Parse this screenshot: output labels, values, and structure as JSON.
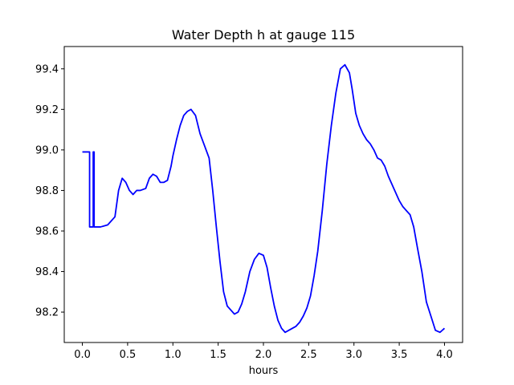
{
  "chart_data": {
    "type": "line",
    "title": "Water Depth h at gauge 115",
    "xlabel": "hours",
    "ylabel": "",
    "xlim": [
      -0.2,
      4.2
    ],
    "ylim": [
      98.05,
      99.51
    ],
    "grid": false,
    "x_ticks": [
      0.0,
      0.5,
      1.0,
      1.5,
      2.0,
      2.5,
      3.0,
      3.5,
      4.0
    ],
    "x_tick_labels": [
      "0.0",
      "0.5",
      "1.0",
      "1.5",
      "2.0",
      "2.5",
      "3.0",
      "3.5",
      "4.0"
    ],
    "y_ticks": [
      98.2,
      98.4,
      98.6,
      98.8,
      99.0,
      99.2,
      99.4
    ],
    "y_tick_labels": [
      "98.2",
      "98.4",
      "98.6",
      "98.8",
      "99.0",
      "99.2",
      "99.4"
    ],
    "series": [
      {
        "color": "#0000ff",
        "x": [
          0,
          0.08,
          0.08,
          0.12,
          0.12,
          0.13,
          0.13,
          0.2,
          0.28,
          0.36,
          0.4,
          0.44,
          0.48,
          0.52,
          0.56,
          0.6,
          0.64,
          0.7,
          0.74,
          0.78,
          0.82,
          0.86,
          0.9,
          0.94,
          0.98,
          1.0,
          1.04,
          1.08,
          1.12,
          1.16,
          1.2,
          1.25,
          1.3,
          1.35,
          1.4,
          1.44,
          1.48,
          1.52,
          1.56,
          1.6,
          1.64,
          1.68,
          1.72,
          1.76,
          1.8,
          1.85,
          1.9,
          1.95,
          2.0,
          2.04,
          2.08,
          2.12,
          2.16,
          2.2,
          2.24,
          2.28,
          2.32,
          2.36,
          2.4,
          2.44,
          2.48,
          2.52,
          2.56,
          2.6,
          2.65,
          2.7,
          2.75,
          2.8,
          2.85,
          2.9,
          2.95,
          2.98,
          3.02,
          3.06,
          3.1,
          3.14,
          3.18,
          3.22,
          3.26,
          3.3,
          3.34,
          3.38,
          3.42,
          3.46,
          3.5,
          3.54,
          3.58,
          3.62,
          3.66,
          3.7,
          3.75,
          3.8,
          3.85,
          3.9,
          3.95,
          4.0
        ],
        "y": [
          98.99,
          98.99,
          98.62,
          98.62,
          98.99,
          98.99,
          98.62,
          98.62,
          98.63,
          98.67,
          98.8,
          98.86,
          98.84,
          98.8,
          98.78,
          98.8,
          98.8,
          98.81,
          98.86,
          98.88,
          98.87,
          98.84,
          98.84,
          98.85,
          98.92,
          98.97,
          99.05,
          99.12,
          99.17,
          99.19,
          99.2,
          99.17,
          99.08,
          99.02,
          98.96,
          98.8,
          98.62,
          98.45,
          98.3,
          98.23,
          98.21,
          98.19,
          98.2,
          98.24,
          98.3,
          98.4,
          98.46,
          98.49,
          98.48,
          98.42,
          98.32,
          98.23,
          98.16,
          98.12,
          98.1,
          98.11,
          98.12,
          98.13,
          98.15,
          98.18,
          98.22,
          98.28,
          98.38,
          98.5,
          98.7,
          98.93,
          99.12,
          99.28,
          99.4,
          99.42,
          99.38,
          99.3,
          99.18,
          99.12,
          99.08,
          99.05,
          99.03,
          99.0,
          98.96,
          98.95,
          98.92,
          98.87,
          98.83,
          98.79,
          98.75,
          98.72,
          98.7,
          98.68,
          98.62,
          98.52,
          98.4,
          98.25,
          98.18,
          98.11,
          98.1,
          98.12
        ]
      }
    ]
  }
}
